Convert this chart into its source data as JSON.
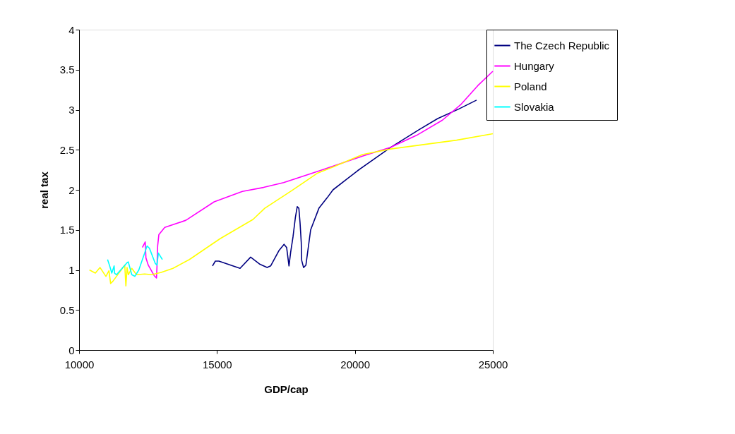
{
  "chart_data": {
    "type": "line",
    "xlabel": "GDP/cap",
    "ylabel": "real tax",
    "xlim": [
      10000,
      25000
    ],
    "xticks": [
      10000,
      15000,
      20000,
      25000
    ],
    "ylim": [
      0,
      4
    ],
    "yticks": [
      0,
      0.5,
      1,
      1.5,
      2,
      2.5,
      3,
      3.5,
      4
    ],
    "grid": false,
    "legend": "right",
    "marker": "none",
    "line_style": "solid",
    "series": [
      {
        "name": "The Czech Republic",
        "color": "#000080",
        "x": [
          14837,
          14940,
          15068,
          15836,
          16220,
          16560,
          16817,
          16945,
          17243,
          17431,
          17525,
          17558,
          17610,
          17670,
          17755,
          17840,
          17909,
          17968,
          18011,
          18055,
          18070,
          18139,
          18224,
          18395,
          18695,
          18992,
          19206,
          20102,
          21296,
          22320,
          23002,
          23770,
          24410
        ],
        "values": [
          1.05,
          1.11,
          1.11,
          1.02,
          1.16,
          1.07,
          1.03,
          1.05,
          1.24,
          1.32,
          1.28,
          1.19,
          1.05,
          1.22,
          1.41,
          1.65,
          1.79,
          1.77,
          1.59,
          1.34,
          1.12,
          1.03,
          1.06,
          1.5,
          1.77,
          1.9,
          2.0,
          2.24,
          2.53,
          2.75,
          2.89,
          3.01,
          3.12
        ]
      },
      {
        "name": "Hungary",
        "color": "#ff00ff",
        "x": [
          12296,
          12398,
          12424,
          12508,
          12721,
          12807,
          12823,
          12849,
          12892,
          13105,
          13873,
          14897,
          15920,
          16688,
          17415,
          18735,
          20271,
          21296,
          22234,
          23173,
          23855,
          24453,
          25000
        ],
        "values": [
          1.28,
          1.35,
          1.15,
          1.06,
          0.93,
          0.9,
          1.03,
          1.3,
          1.44,
          1.53,
          1.62,
          1.85,
          1.98,
          2.03,
          2.09,
          2.24,
          2.42,
          2.53,
          2.68,
          2.87,
          3.07,
          3.3,
          3.48
        ]
      },
      {
        "name": "Poland",
        "color": "#ffff00",
        "x": [
          10376,
          10589,
          10760,
          10973,
          11083,
          11144,
          11229,
          11656,
          11697,
          11740,
          11784,
          11911,
          12081,
          12380,
          12636,
          12977,
          13404,
          14000,
          15111,
          16304,
          16731,
          17710,
          18651,
          19248,
          20271,
          21296,
          23684,
          25000
        ],
        "values": [
          1.0,
          0.96,
          1.03,
          0.92,
          0.99,
          0.83,
          0.86,
          1.06,
          0.8,
          1.03,
          0.94,
          1.02,
          0.94,
          0.95,
          0.94,
          0.97,
          1.02,
          1.13,
          1.39,
          1.63,
          1.77,
          1.99,
          2.21,
          2.29,
          2.44,
          2.51,
          2.62,
          2.7
        ]
      },
      {
        "name": "Slovakia",
        "color": "#00ffff",
        "x": [
          11032,
          11101,
          11186,
          11271,
          11287,
          11357,
          11740,
          11784,
          11911,
          12022,
          12167,
          12465,
          12552,
          12764,
          12823,
          12875,
          13020
        ],
        "values": [
          1.13,
          1.06,
          0.96,
          1.05,
          0.96,
          0.94,
          1.09,
          1.1,
          0.94,
          0.92,
          1.0,
          1.3,
          1.27,
          1.08,
          1.06,
          1.21,
          1.13
        ]
      }
    ]
  }
}
